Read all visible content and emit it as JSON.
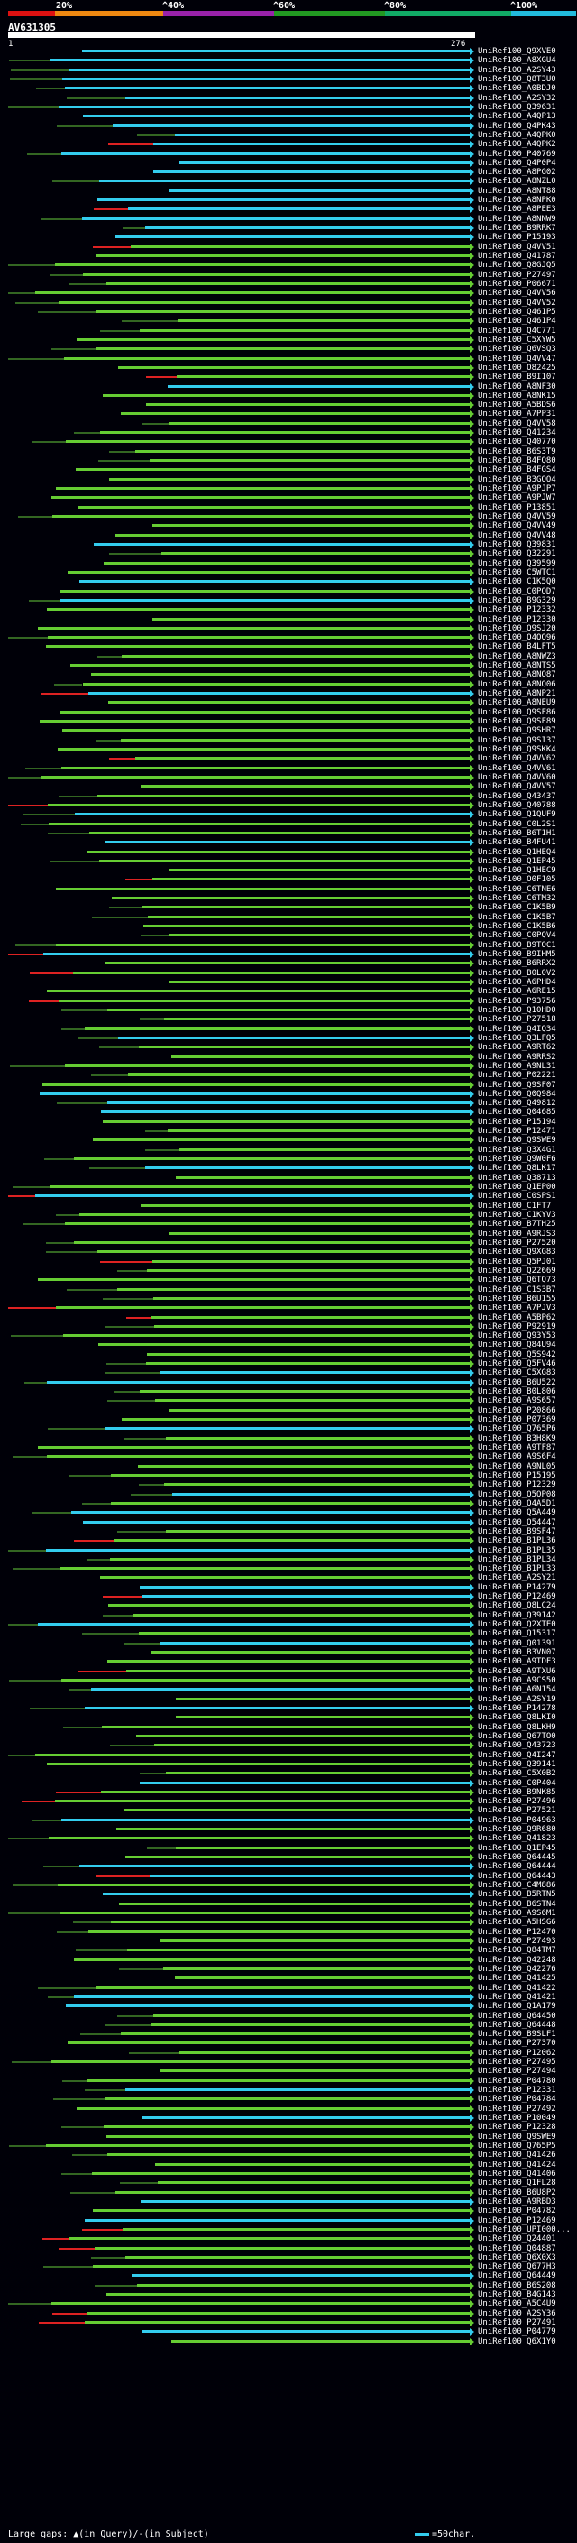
{
  "scale": {
    "labels": [
      "20%",
      "^40%",
      "^60%",
      "^80%",
      "^100%"
    ],
    "colors": [
      "#dd1111",
      "#ee8811",
      "#9922aa",
      "#229922",
      "#11aa66",
      "#22bbdd"
    ]
  },
  "query": {
    "name": "AV631305",
    "start": "1",
    "end": "276"
  },
  "legend": {
    "gaps": "Large gaps: ▲(in Query)/-(in Subject)",
    "scale_note": "=50char."
  },
  "colors": {
    "cyan_hit": "#33ccee",
    "green_hit": "#66cc33",
    "dark_green": "#336622",
    "red_tail": "#dd2222",
    "white_mark": "#ffffff"
  },
  "hits": [
    "UniRef100_Q9XVE0",
    "UniRef100_A8XGU4",
    "UniRef100_A2SY43",
    "UniRef100_Q8T3U0",
    "UniRef100_A0BDJ0",
    "UniRef100_A2SY32",
    "UniRef100_Q39631",
    "UniRef100_A4QP13",
    "UniRef100_Q4PK43",
    "UniRef100_A4QPK0",
    "UniRef100_A4QPK2",
    "UniRef100_P40769",
    "UniRef100_Q4P0P4",
    "UniRef100_A8PG02",
    "UniRef100_A8NZL0",
    "UniRef100_A8NT88",
    "UniRef100_A8NPK0",
    "UniRef100_A8PEE3",
    "UniRef100_A8NNW9",
    "UniRef100_B9RRK7",
    "UniRef100_P15193",
    "UniRef100_Q4VV51",
    "UniRef100_Q41787",
    "UniRef100_Q8GJQ5",
    "UniRef100_P27497",
    "UniRef100_P06671",
    "UniRef100_Q4VV56",
    "UniRef100_Q4VV52",
    "UniRef100_Q461P5",
    "UniRef100_Q461P4",
    "UniRef100_Q4C771",
    "UniRef100_C5XYW5",
    "UniRef100_Q6VSQ3",
    "UniRef100_Q4VV47",
    "UniRef100_O82425",
    "UniRef100_B9I107",
    "UniRef100_A8NF30",
    "UniRef100_A8NK15",
    "UniRef100_A5BDS6",
    "UniRef100_A7PP31",
    "UniRef100_Q4VV58",
    "UniRef100_Q41234",
    "UniRef100_Q40770",
    "UniRef100_B6S3T9",
    "UniRef100_B4FQ80",
    "UniRef100_B4FGS4",
    "UniRef100_B3GOO4",
    "UniRef100_A9PJP7",
    "UniRef100_A9PJW7",
    "UniRef100_P13851",
    "UniRef100_Q4VV59",
    "UniRef100_Q4VV49",
    "UniRef100_Q4VV48",
    "UniRef100_Q39831",
    "UniRef100_Q32291",
    "UniRef100_Q39599",
    "UniRef100_C5WTC1",
    "UniRef100_C1K5Q0",
    "UniRef100_C0PQD7",
    "UniRef100_B9G329",
    "UniRef100_P12332",
    "UniRef100_P12330",
    "UniRef100_Q9SJ20",
    "UniRef100_Q4QQ96",
    "UniRef100_B4LFT5",
    "UniRef100_A8NWZ3",
    "UniRef100_A8NTS5",
    "UniRef100_A8NQ87",
    "UniRef100_A8NQ06",
    "UniRef100_A8NP21",
    "UniRef100_A8NEU9",
    "UniRef100_Q9SF86",
    "UniRef100_Q9SF89",
    "UniRef100_Q9SHR7",
    "UniRef100_Q9SI37",
    "UniRef100_Q9SKK4",
    "UniRef100_Q4VV62",
    "UniRef100_Q4VV61",
    "UniRef100_Q4VV60",
    "UniRef100_Q4VV57",
    "UniRef100_Q43437",
    "UniRef100_Q40788",
    "UniRef100_Q1QUF9",
    "UniRef100_C0L2S1",
    "UniRef100_B6T1H1",
    "UniRef100_B4FU41",
    "UniRef100_Q1HEQ4",
    "UniRef100_Q1EP45",
    "UniRef100_Q1HEC9",
    "UniRef100_O0F105",
    "UniRef100_C6TNE6",
    "UniRef100_C6TM32",
    "UniRef100_C1K5B9",
    "UniRef100_C1K5B7",
    "UniRef100_C1K5B6",
    "UniRef100_C0PQV4",
    "UniRef100_B9TOC1",
    "UniRef100_B9IHM5",
    "UniRef100_B6RRX2",
    "UniRef100_B0L0V2",
    "UniRef100_A6PHD4",
    "UniRef100_A6RE15",
    "UniRef100_P93756",
    "UniRef100_Q10HD0",
    "UniRef100_P27518",
    "UniRef100_Q4IQ34",
    "UniRef100_Q3LFQ5",
    "UniRef100_A9RT62",
    "UniRef100_A9RRS2",
    "UniRef100_A9NL31",
    "UniRef100_P02221",
    "UniRef100_Q9SF07",
    "UniRef100_Q0Q984",
    "UniRef100_Q49812",
    "UniRef100_Q04685",
    "UniRef100_P15194",
    "UniRef100_P12471",
    "UniRef100_Q9SWE9",
    "UniRef100_Q3X4G1",
    "UniRef100_Q9W0F6",
    "UniRef100_Q8LK17",
    "UniRef100_Q38713",
    "UniRef100_Q1EP00",
    "UniRef100_C0SPS1",
    "UniRef100_C1FT7",
    "UniRef100_C1KYV3",
    "UniRef100_B7TH25",
    "UniRef100_A9RJS3",
    "UniRef100_P27520",
    "UniRef100_Q9XG83",
    "UniRef100_Q5PJ01",
    "UniRef100_Q22669",
    "UniRef100_Q6TQ73",
    "UniRef100_C1S3B7",
    "UniRef100_B6U155",
    "UniRef100_A7PJV3",
    "UniRef100_A5BP62",
    "UniRef100_P92919",
    "UniRef100_Q93Y53",
    "UniRef100_Q84U94",
    "UniRef100_Q5S942",
    "UniRef100_Q5FV46",
    "UniRef100_C5XG83",
    "UniRef100_B6U522",
    "UniRef100_B0L806",
    "UniRef100_A9S657",
    "UniRef100_P20866",
    "UniRef100_P07369",
    "UniRef100_Q765P6",
    "UniRef100_B3H8K9",
    "UniRef100_A9TF87",
    "UniRef100_A9S6F4",
    "UniRef100_A9NL05",
    "UniRef100_P15195",
    "UniRef100_P12329",
    "UniRef100_Q5QP08",
    "UniRef100_Q4A5D1",
    "UniRef100_Q5A449",
    "UniRef100_Q54447",
    "UniRef100_B9SF47",
    "UniRef100_B1PL36",
    "UniRef100_B1PL35",
    "UniRef100_B1PL34",
    "UniRef100_B1PL33",
    "UniRef100_A2SY21",
    "UniRef100_P14279",
    "UniRef100_P12469",
    "UniRef100_Q8LC24",
    "UniRef100_Q39142",
    "UniRef100_Q2XTE0",
    "UniRef100_Q15317",
    "UniRef100_Q01391",
    "UniRef100_B3VN07",
    "UniRef100_A9TDF3",
    "UniRef100_A9TXU6",
    "UniRef100_A9CS50",
    "UniRef100_A6N154",
    "UniRef100_A2SY19",
    "UniRef100_P14278",
    "UniRef100_Q8LKI0",
    "UniRef100_Q8LKH9",
    "UniRef100_Q67TO0",
    "UniRef100_Q43723",
    "UniRef100_Q4I247",
    "UniRef100_Q39141",
    "UniRef100_C5X0B2",
    "UniRef100_C0P404",
    "UniRef100_B9NK85",
    "UniRef100_P27496",
    "UniRef100_P27521",
    "UniRef100_P04963",
    "UniRef100_Q9R680",
    "UniRef100_Q41823",
    "UniRef100_Q1EP45",
    "UniRef100_Q64445",
    "UniRef100_Q64444",
    "UniRef100_Q64443",
    "UniRef100_C4M886",
    "UniRef100_B5RTN5",
    "UniRef100_B6STN4",
    "UniRef100_A9S6M1",
    "UniRef100_A5HSG6",
    "UniRef100_P12470",
    "UniRef100_P27493",
    "UniRef100_Q84TM7",
    "UniRef100_Q42248",
    "UniRef100_Q42276",
    "UniRef100_Q41425",
    "UniRef100_Q41422",
    "UniRef100_Q41421",
    "UniRef100_Q1A179",
    "UniRef100_Q64450",
    "UniRef100_Q64448",
    "UniRef100_B9SLF1",
    "UniRef100_P27370",
    "UniRef100_P12062",
    "UniRef100_P27495",
    "UniRef100_P27494",
    "UniRef100_P04780",
    "UniRef100_P12331",
    "UniRef100_P04784",
    "UniRef100_P27492",
    "UniRef100_P10049",
    "UniRef100_P12328",
    "UniRef100_Q9SWE9",
    "UniRef100_Q765P5",
    "UniRef100_Q41426",
    "UniRef100_Q41424",
    "UniRef100_Q41406",
    "UniRef100_Q1FL28",
    "UniRef100_B6U8P2",
    "UniRef100_A9RBD3",
    "UniRef100_P04782",
    "UniRef100_P12469",
    "UniRef100_UPI000...",
    "UniRef100_Q24401",
    "UniRef100_Q04887",
    "UniRef100_Q6X0X3",
    "UniRef100_Q677H3",
    "UniRef100_Q64449",
    "UniRef100_B6S208",
    "UniRef100_B4G143",
    "UniRef100_A5C4U9",
    "UniRef100_A2SY36",
    "UniRef100_P27491",
    "UniRef100_P04779",
    "UniRef100_Q6X1Y0"
  ]
}
